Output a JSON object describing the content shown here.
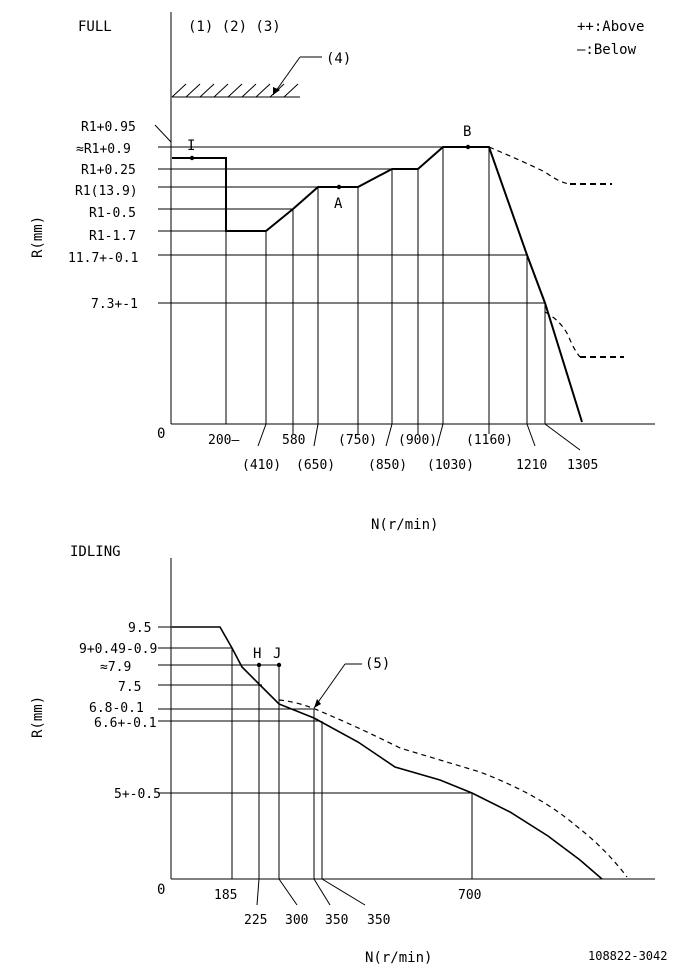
{
  "full": {
    "title": "FULL",
    "markers_top": "(1) (2) (3)",
    "hatch_label": "(4)",
    "legend_above": "++:Above",
    "legend_below": "—:Below",
    "y_axis_label": "R(mm)",
    "x_axis_label": "N(r/min)",
    "origin": "0",
    "y_labels": [
      "R1+0.95",
      "≈R1+0.9",
      "R1+0.25",
      "R1(13.9)",
      "R1-0.5",
      "R1-1.7",
      "11.7+-0.1",
      "7.3+-1"
    ],
    "x_labels": [
      "200—",
      "580",
      "(750)",
      "(900)",
      "(1160)",
      "(410)",
      "(650)",
      "(850)",
      "(1030)",
      "1210",
      "1305"
    ],
    "point_I": "I",
    "point_A": "A",
    "point_B": "B"
  },
  "idling": {
    "title": "IDLING",
    "y_axis_label": "R(mm)",
    "x_axis_label": "N(r/min)",
    "origin": "0",
    "curve_label": "(5)",
    "y_labels": [
      "9.5",
      "9+0.49-0.9",
      "≈7.9",
      "7.5",
      "6.8-0.1",
      "6.6+-0.1",
      "5+-0.5"
    ],
    "x_labels": [
      "185",
      "225",
      "300",
      "350",
      "350",
      "700"
    ],
    "point_H": "H",
    "point_J": "J"
  },
  "footer_code": "108822-3042"
}
